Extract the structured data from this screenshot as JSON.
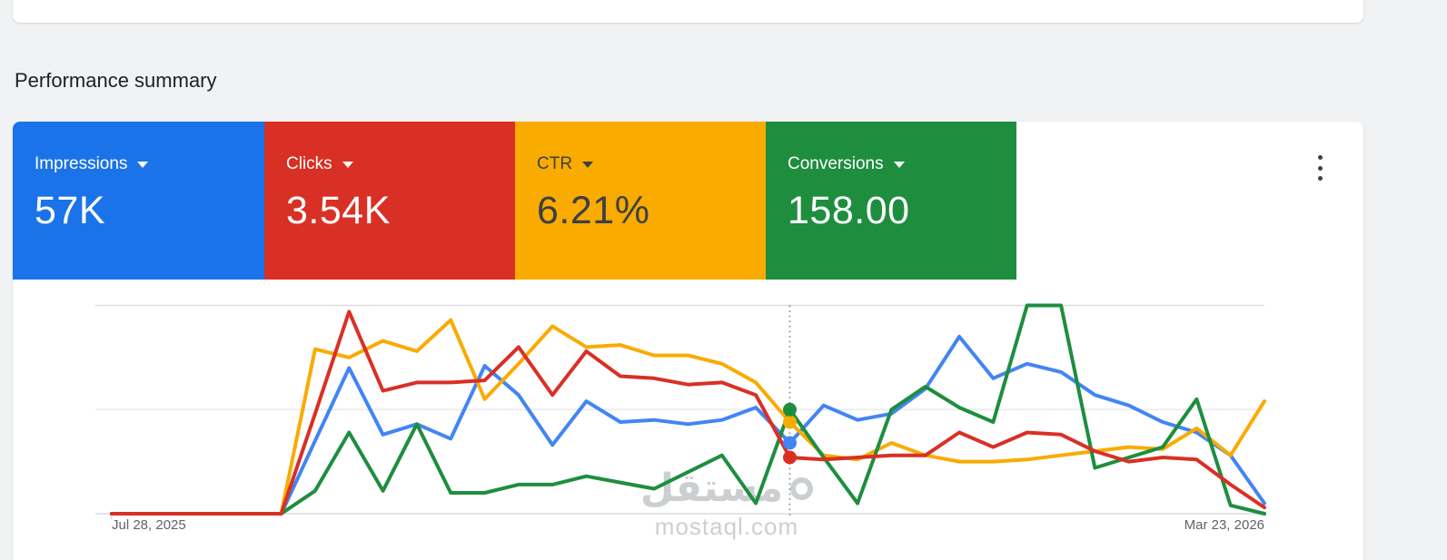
{
  "page": {
    "heading": "Performance summary",
    "background_color": "#f0f2f4"
  },
  "tabs": [
    {
      "label": "Impressions",
      "value": "57K",
      "bg_color": "#1a73e8",
      "fg_color": "#ffffff"
    },
    {
      "label": "Clicks",
      "value": "3.54K",
      "bg_color": "#d93025",
      "fg_color": "#ffffff"
    },
    {
      "label": "CTR",
      "value": "6.21%",
      "bg_color": "#f9ab00",
      "fg_color": "#3c4043"
    },
    {
      "label": "Conversions",
      "value": "158.00",
      "bg_color": "#1e8e3e",
      "fg_color": "#ffffff"
    }
  ],
  "menu": {
    "more_options_icon": "kebab-vertical"
  },
  "watermark": {
    "arabic": "مستقل",
    "latin": "mostaql.com"
  },
  "chart_data": {
    "type": "line",
    "title": "Performance summary trend",
    "x_axis": {
      "start_label": "Jul 28, 2025",
      "end_label": "Mar 23, 2026",
      "points": 35,
      "interval": "weekly"
    },
    "y_axis": {
      "unit": "percent_of_plot_height",
      "range": [
        0,
        100
      ],
      "gridlines": [
        0,
        50,
        100
      ],
      "tick_labels_visible": false
    },
    "legend_position": "none",
    "marker_index": 20,
    "marker_style": "dotted-vertical-line-with-dots",
    "grid_color": "#dadce0",
    "mid_grid_color": "#e8eaed",
    "series": [
      {
        "name": "Impressions",
        "color": "#4285f4",
        "values": [
          0,
          0,
          0,
          0,
          0,
          0,
          35,
          70,
          38,
          43,
          36,
          71,
          57,
          33,
          54,
          44,
          45,
          43,
          45,
          51,
          34,
          52,
          45,
          48,
          60,
          85,
          65,
          72,
          68,
          57,
          52,
          44,
          39,
          28,
          5
        ]
      },
      {
        "name": "Clicks",
        "color": "#d93025",
        "values": [
          0,
          0,
          0,
          0,
          0,
          0,
          48,
          97,
          59,
          63,
          63,
          64,
          80,
          57,
          78,
          66,
          65,
          62,
          63,
          57,
          27,
          26,
          27,
          28,
          28,
          39,
          32,
          39,
          38,
          30,
          25,
          27,
          26,
          14,
          3
        ]
      },
      {
        "name": "CTR",
        "color": "#f9ab00",
        "values": [
          0,
          0,
          0,
          0,
          0,
          0,
          79,
          75,
          83,
          78,
          93,
          55,
          72,
          90,
          80,
          81,
          76,
          76,
          72,
          63,
          44,
          28,
          26,
          34,
          28,
          25,
          25,
          26,
          28,
          30,
          32,
          31,
          41,
          28,
          54
        ]
      },
      {
        "name": "Conversions",
        "color": "#1e8e3e",
        "values": [
          0,
          0,
          0,
          0,
          0,
          0,
          11,
          39,
          11,
          43,
          10,
          10,
          14,
          14,
          18,
          15,
          12,
          20,
          28,
          5,
          50,
          27,
          5,
          50,
          61,
          51,
          44,
          100,
          100,
          22,
          27,
          32,
          55,
          4,
          0
        ]
      }
    ]
  }
}
